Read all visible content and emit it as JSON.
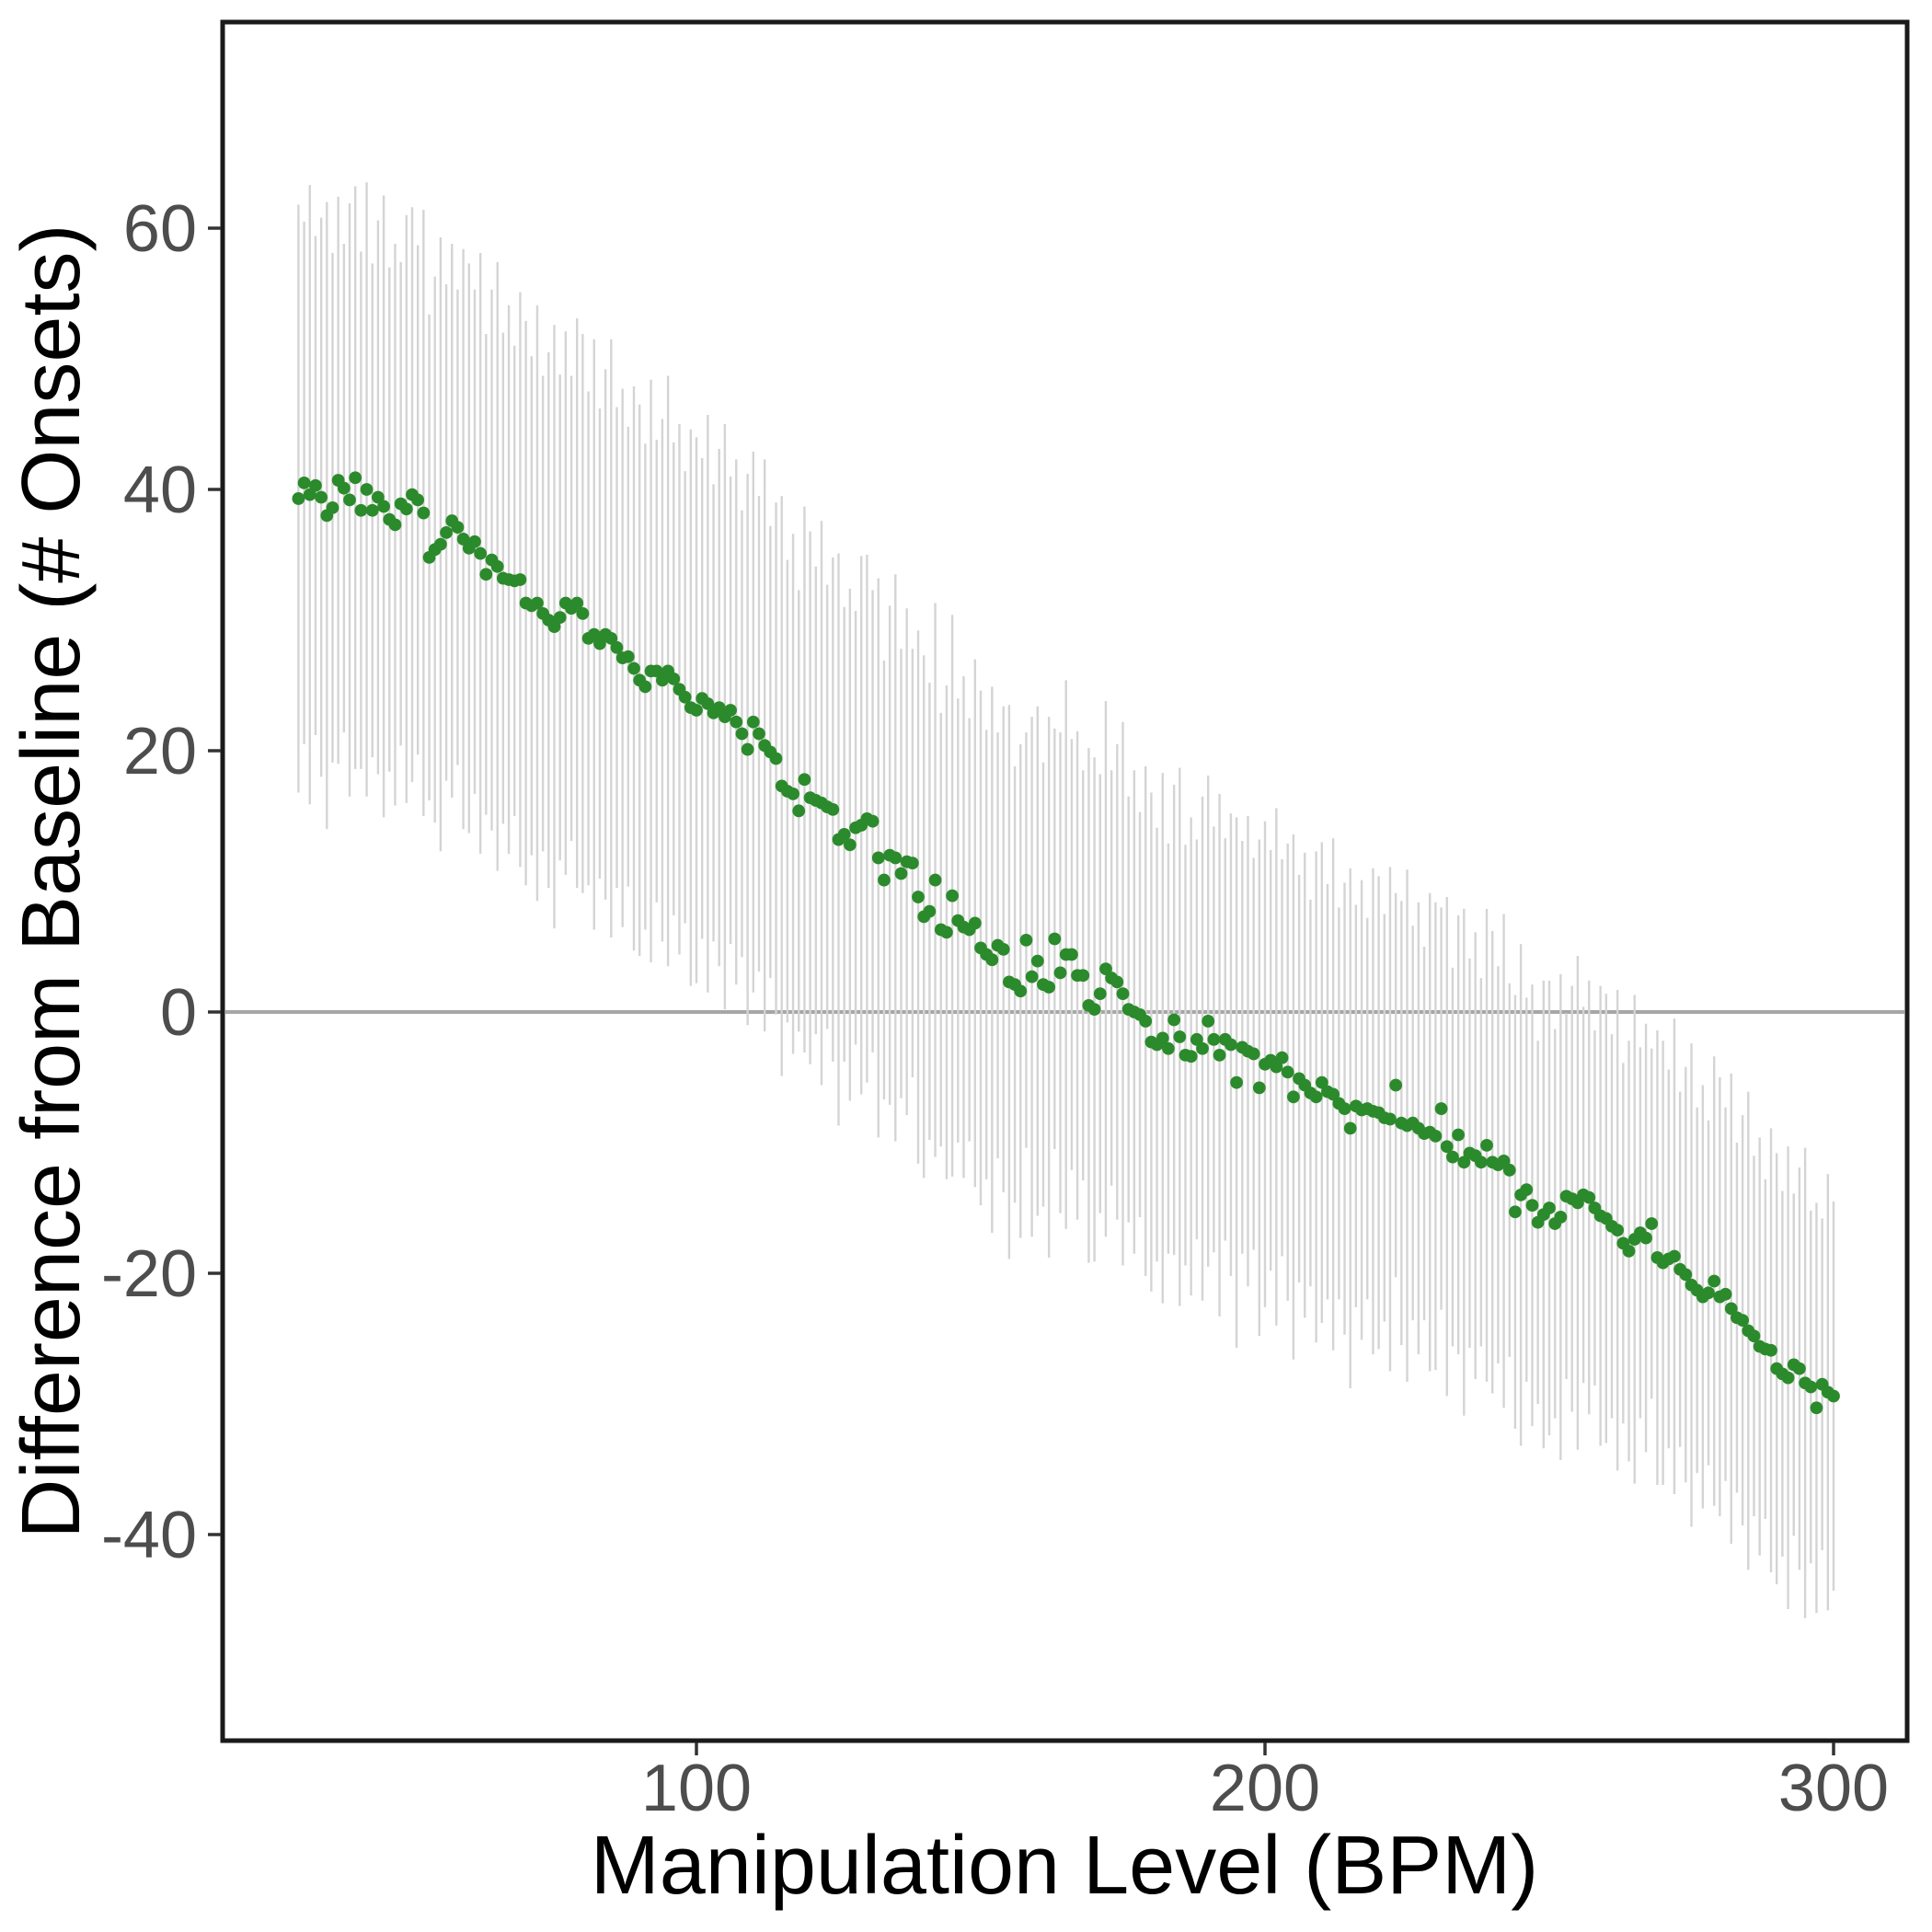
{
  "chart_data": {
    "type": "scatter",
    "title": "",
    "xlabel": "Manipulation Level (BPM)",
    "ylabel": "Difference from Baseline (# Onsets)",
    "x_ticks": [
      100,
      200,
      300
    ],
    "y_ticks": [
      -40,
      -20,
      0,
      20,
      40,
      60
    ],
    "xlim": [
      17,
      313
    ],
    "ylim": [
      -56,
      76
    ],
    "grid": false,
    "legend": "none",
    "reference_line_y": 0,
    "error_bars": "vertical linerange, no caps, one per point",
    "colors": {
      "point": "#2b8a2b",
      "error_bar": "#d4d4d4",
      "zero_line": "#a6a6a6",
      "panel_border": "#1a1a1a",
      "tick_mark": "#333333",
      "tick_label": "#4d4d4d",
      "axis_title": "#000000",
      "background": "#ffffff"
    },
    "series": [
      {
        "name": "difference_from_baseline",
        "x": [
          30,
          31,
          32,
          33,
          34,
          35,
          36,
          37,
          38,
          39,
          40,
          41,
          42,
          43,
          44,
          45,
          46,
          47,
          48,
          49,
          50,
          51,
          52,
          53,
          54,
          55,
          56,
          57,
          58,
          59,
          60,
          61,
          62,
          63,
          64,
          65,
          66,
          67,
          68,
          69,
          70,
          71,
          72,
          73,
          74,
          75,
          76,
          77,
          78,
          79,
          80,
          81,
          82,
          83,
          84,
          85,
          86,
          87,
          88,
          89,
          90,
          91,
          92,
          93,
          94,
          95,
          96,
          97,
          98,
          99,
          100,
          101,
          102,
          103,
          104,
          105,
          106,
          107,
          108,
          109,
          110,
          111,
          112,
          113,
          114,
          115,
          116,
          117,
          118,
          119,
          120,
          121,
          122,
          123,
          124,
          125,
          126,
          127,
          128,
          129,
          130,
          131,
          132,
          133,
          134,
          135,
          136,
          137,
          138,
          139,
          140,
          141,
          142,
          143,
          144,
          145,
          146,
          147,
          148,
          149,
          150,
          151,
          152,
          153,
          154,
          155,
          156,
          157,
          158,
          159,
          160,
          161,
          162,
          163,
          164,
          165,
          166,
          167,
          168,
          169,
          170,
          171,
          172,
          173,
          174,
          175,
          176,
          177,
          178,
          179,
          180,
          181,
          182,
          183,
          184,
          185,
          186,
          187,
          188,
          189,
          190,
          191,
          192,
          193,
          194,
          195,
          196,
          197,
          198,
          199,
          200,
          201,
          202,
          203,
          204,
          205,
          206,
          207,
          208,
          209,
          210,
          211,
          212,
          213,
          214,
          215,
          216,
          217,
          218,
          219,
          220,
          221,
          222,
          223,
          224,
          225,
          226,
          227,
          228,
          229,
          230,
          231,
          232,
          233,
          234,
          235,
          236,
          237,
          238,
          239,
          240,
          241,
          242,
          243,
          244,
          245,
          246,
          247,
          248,
          249,
          250,
          251,
          252,
          253,
          254,
          255,
          256,
          257,
          258,
          259,
          260,
          261,
          262,
          263,
          264,
          265,
          266,
          267,
          268,
          269,
          270,
          271,
          272,
          273,
          274,
          275,
          276,
          277,
          278,
          279,
          280,
          281,
          282,
          283,
          284,
          285,
          286,
          287,
          288,
          289,
          290,
          291,
          292,
          293,
          294,
          295,
          296,
          297,
          298,
          299,
          300
        ],
        "y": [
          39.3,
          40.5,
          39.6,
          40.3,
          39.4,
          38.0,
          38.6,
          40.7,
          40.1,
          39.2,
          40.9,
          38.4,
          40.0,
          38.4,
          39.4,
          38.7,
          37.7,
          37.3,
          38.9,
          38.5,
          39.6,
          39.2,
          38.2,
          34.8,
          35.4,
          35.8,
          36.7,
          37.6,
          37.1,
          36.2,
          35.5,
          36.0,
          35.1,
          33.5,
          34.6,
          34.1,
          33.2,
          33.1,
          33.0,
          33.1,
          31.3,
          31.1,
          31.3,
          30.5,
          30.0,
          29.5,
          30.2,
          31.3,
          30.9,
          31.3,
          30.5,
          28.6,
          28.9,
          28.2,
          28.9,
          28.6,
          27.9,
          27.1,
          27.2,
          26.3,
          25.4,
          24.9,
          26.1,
          26.1,
          25.4,
          26.1,
          25.5,
          24.7,
          24.1,
          23.3,
          23.1,
          24.0,
          23.6,
          22.9,
          23.3,
          22.6,
          23.1,
          22.2,
          21.3,
          20.1,
          22.2,
          21.3,
          20.4,
          19.9,
          19.4,
          17.3,
          16.9,
          16.7,
          15.4,
          17.8,
          16.4,
          16.2,
          16.0,
          15.7,
          15.5,
          13.2,
          13.6,
          12.8,
          14.1,
          14.3,
          14.8,
          14.6,
          11.8,
          10.1,
          12.0,
          11.8,
          10.6,
          11.5,
          11.4,
          8.8,
          7.3,
          7.7,
          10.1,
          6.3,
          6.1,
          8.9,
          7.0,
          6.5,
          6.3,
          6.8,
          4.9,
          4.4,
          4.0,
          5.1,
          4.8,
          2.3,
          2.1,
          1.6,
          5.5,
          2.7,
          3.9,
          2.1,
          1.9,
          5.6,
          3.0,
          4.4,
          4.4,
          2.8,
          2.8,
          0.5,
          0.2,
          1.4,
          3.3,
          2.6,
          2.3,
          1.4,
          0.2,
          0.0,
          -0.2,
          -0.7,
          -2.3,
          -2.5,
          -2.0,
          -2.8,
          -0.6,
          -1.9,
          -3.3,
          -3.4,
          -2.1,
          -2.8,
          -0.7,
          -2.1,
          -3.3,
          -2.1,
          -2.5,
          -5.4,
          -2.7,
          -3.0,
          -3.2,
          -5.8,
          -4.0,
          -3.7,
          -4.2,
          -3.5,
          -4.6,
          -6.5,
          -5.1,
          -5.6,
          -6.2,
          -6.5,
          -5.4,
          -6.1,
          -6.3,
          -7.0,
          -7.4,
          -8.9,
          -7.2,
          -7.5,
          -7.4,
          -7.6,
          -7.7,
          -8.1,
          -8.2,
          -5.6,
          -8.5,
          -8.7,
          -8.5,
          -8.9,
          -9.3,
          -9.2,
          -9.5,
          -7.4,
          -10.3,
          -11.1,
          -9.4,
          -11.5,
          -10.8,
          -11.0,
          -11.5,
          -10.2,
          -11.5,
          -11.7,
          -11.4,
          -12.1,
          -15.3,
          -14.0,
          -13.6,
          -14.8,
          -16.1,
          -15.5,
          -15.0,
          -16.2,
          -15.7,
          -14.1,
          -14.3,
          -14.6,
          -14.0,
          -14.2,
          -15.0,
          -15.6,
          -15.8,
          -16.4,
          -16.7,
          -17.7,
          -18.3,
          -17.4,
          -16.9,
          -17.3,
          -16.2,
          -18.8,
          -19.2,
          -18.9,
          -18.7,
          -19.7,
          -20.1,
          -20.9,
          -21.3,
          -21.8,
          -21.5,
          -20.6,
          -21.8,
          -21.6,
          -22.7,
          -23.4,
          -23.6,
          -24.4,
          -24.8,
          -25.6,
          -25.8,
          -25.9,
          -27.3,
          -27.7,
          -28.0,
          -27.0,
          -27.3,
          -28.4,
          -28.7,
          -30.3,
          -28.5,
          -29.1,
          -29.4
        ],
        "error_half_width": [
          22.5,
          20.0,
          23.7,
          19.1,
          21.4,
          24.0,
          19.5,
          21.7,
          18.7,
          22.7,
          22.3,
          19.8,
          23.5,
          18.9,
          21.2,
          23.8,
          19.3,
          21.5,
          18.5,
          22.5,
          22.0,
          19.5,
          23.2,
          18.6,
          20.9,
          23.5,
          19.0,
          21.2,
          18.2,
          22.2,
          21.8,
          19.3,
          23.0,
          18.4,
          20.7,
          23.3,
          18.8,
          21.0,
          18.0,
          22.0,
          21.6,
          19.1,
          22.8,
          18.2,
          20.5,
          23.1,
          18.6,
          20.8,
          17.8,
          21.8,
          21.4,
          18.9,
          22.6,
          18.0,
          20.3,
          22.9,
          18.4,
          20.6,
          17.6,
          21.6,
          21.1,
          18.6,
          22.3,
          17.7,
          20.0,
          22.6,
          18.1,
          20.3,
          17.3,
          21.3,
          20.9,
          18.4,
          22.1,
          17.5,
          19.8,
          22.4,
          17.9,
          20.1,
          17.1,
          21.1,
          20.7,
          18.2,
          21.9,
          17.3,
          19.6,
          22.2,
          17.7,
          19.9,
          16.9,
          20.9,
          20.4,
          17.9,
          21.6,
          17.0,
          19.3,
          21.9,
          17.4,
          19.6,
          16.6,
          20.6,
          20.2,
          17.7,
          21.4,
          16.8,
          19.1,
          21.7,
          17.2,
          19.4,
          16.4,
          20.4,
          20.0,
          17.5,
          21.2,
          16.6,
          18.9,
          21.5,
          17.0,
          19.2,
          16.2,
          20.2,
          19.7,
          17.2,
          20.9,
          16.3,
          18.6,
          21.2,
          16.7,
          18.9,
          15.9,
          19.9,
          19.5,
          17.0,
          20.7,
          16.1,
          18.4,
          21.0,
          16.5,
          18.7,
          15.7,
          19.7,
          19.3,
          16.8,
          20.5,
          15.9,
          18.2,
          20.8,
          16.3,
          18.5,
          15.5,
          19.5,
          19.1,
          16.6,
          20.3,
          15.7,
          18.0,
          20.6,
          16.1,
          18.3,
          15.3,
          19.3,
          18.8,
          16.3,
          20.0,
          15.4,
          17.7,
          20.3,
          15.8,
          18.0,
          15.0,
          19.0,
          18.6,
          16.1,
          19.8,
          15.2,
          17.5,
          20.1,
          15.6,
          17.8,
          14.8,
          18.8,
          18.4,
          15.9,
          19.6,
          15.0,
          17.3,
          19.9,
          15.4,
          17.6,
          14.6,
          18.6,
          18.1,
          15.6,
          19.3,
          14.7,
          17.0,
          19.6,
          15.1,
          17.3,
          14.3,
          18.3,
          17.9,
          15.4,
          19.1,
          14.5,
          16.8,
          19.4,
          14.9,
          17.1,
          14.1,
          18.1,
          17.7,
          15.2,
          18.9,
          14.3,
          16.6,
          19.2,
          14.7,
          16.9,
          13.9,
          17.9,
          17.4,
          14.9,
          18.6,
          14.0,
          16.3,
          18.9,
          14.4,
          16.6,
          13.6,
          17.6,
          17.2,
          14.7,
          18.4,
          13.8,
          16.1,
          18.7,
          14.2,
          16.4,
          13.4,
          17.4,
          17.0,
          14.5,
          18.2,
          13.6,
          15.9,
          18.5,
          14.0,
          16.2,
          13.2,
          17.2,
          16.8,
          14.3,
          18.0,
          13.4,
          15.7,
          18.3,
          13.8,
          16.0,
          13.0,
          17.0,
          16.5,
          14.0,
          17.7,
          13.1,
          15.4,
          18.0,
          13.5,
          15.7,
          12.7,
          16.7,
          14.9
        ]
      }
    ]
  }
}
